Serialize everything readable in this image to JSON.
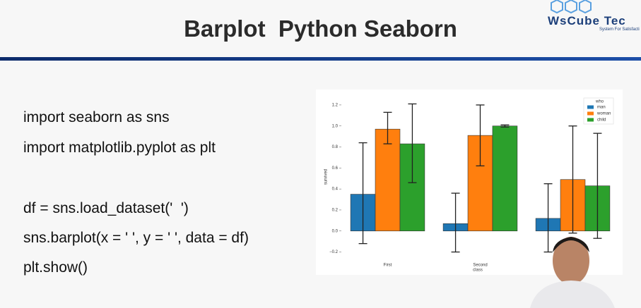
{
  "header": {
    "title": "Barplot  Python Seaborn",
    "logo": "WsCube Tec",
    "tagline": "System For Satisfacti"
  },
  "code": [
    "import seaborn as sns",
    "import matplotlib.pyplot as plt",
    "df = sns.load_dataset('  ')",
    "sns.barplot(x = ' ', y = ' ', data = df)",
    "plt.show()"
  ],
  "chart_data": {
    "type": "bar",
    "x_label": "class",
    "y_label": "survived",
    "legend_title": "who",
    "legend": "upper right",
    "categories": [
      "First",
      "Second",
      null
    ],
    "series": [
      {
        "name": "man",
        "color": "#1f77b4",
        "values": [
          0.35,
          0.07,
          0.12
        ],
        "ci_low": [
          -0.12,
          -0.2,
          -0.2
        ],
        "ci_high": [
          0.84,
          0.36,
          0.45
        ]
      },
      {
        "name": "woman",
        "color": "#ff7f0e",
        "values": [
          0.97,
          0.91,
          0.49
        ],
        "ci_low": [
          0.83,
          0.62,
          -0.02
        ],
        "ci_high": [
          1.13,
          1.2,
          1.0
        ]
      },
      {
        "name": "child",
        "color": "#2ca02c",
        "values": [
          0.83,
          1.0,
          0.43
        ],
        "ci_low": [
          0.46,
          0.99,
          -0.07
        ],
        "ci_high": [
          1.21,
          1.01,
          0.93
        ]
      }
    ],
    "ylim": [
      -0.25,
      1.28
    ],
    "yticks": [
      {
        "value": -0.2,
        "label": "−0.2"
      },
      {
        "value": 0,
        "label": "0.0"
      },
      0.2,
      0.4,
      0.6,
      0.8,
      {
        "value": 1,
        "label": "1.0"
      },
      1.2
    ]
  }
}
